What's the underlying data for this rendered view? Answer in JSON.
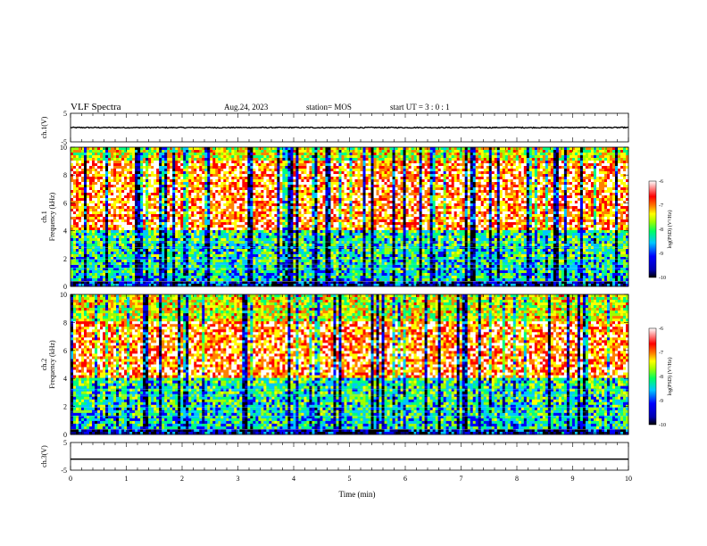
{
  "header": {
    "title": "VLF Spectra",
    "date": "Aug.24, 2023",
    "station": "station= MOS",
    "start_ut": "start  UT =   3 : 0  : 1"
  },
  "colors": {
    "spectrum_palette": [
      "#000000",
      "#00008b",
      "#0000ff",
      "#00c8ff",
      "#00ff80",
      "#a0ff00",
      "#ffff00",
      "#ff8000",
      "#ff0000",
      "#ffffff"
    ],
    "trace": "#000000"
  },
  "chart_data": [
    {
      "type": "line",
      "name": "ch1-waveform",
      "ylabel": "ch.1(V)",
      "ylim": [
        -5,
        5
      ],
      "yticks": [
        "5",
        "-5"
      ],
      "xlim": [
        0,
        10
      ],
      "baseline": 0,
      "grid": false
    },
    {
      "type": "heatmap",
      "name": "ch1-spectrogram",
      "ylabel": "ch.1 Frequency (kHz)",
      "ylim": [
        0,
        10
      ],
      "yticks": [
        "0",
        "2",
        "4",
        "6",
        "8",
        "10"
      ],
      "xlim": [
        0,
        10
      ],
      "colorbar": {
        "label": "log(PSD) (V²/Hz)",
        "range": [
          -10,
          -6
        ],
        "ticks": [
          "-6",
          "-7",
          "-8",
          "-9",
          "-10"
        ]
      },
      "description_values": {
        "dominant_band_kHz": [
          4,
          9
        ]
      }
    },
    {
      "type": "heatmap",
      "name": "ch2-spectrogram",
      "ylabel": "ch.2 Frequency (kHz)",
      "ylim": [
        0,
        10
      ],
      "yticks": [
        "0",
        "2",
        "4",
        "6",
        "8",
        "10"
      ],
      "xlim": [
        0,
        10
      ],
      "colorbar": {
        "label": "log(PSD) (V²/Hz)",
        "range": [
          -10,
          -6
        ],
        "ticks": [
          "-6",
          "-7",
          "-8",
          "-9",
          "-10"
        ]
      },
      "description_values": {
        "dominant_band_kHz": [
          4,
          8
        ]
      }
    },
    {
      "type": "line",
      "name": "ch3-waveform",
      "ylabel": "ch.3(V)",
      "ylim": [
        -5,
        5
      ],
      "yticks": [
        "5",
        "-5"
      ],
      "xlim": [
        0,
        10
      ],
      "baseline": -1,
      "grid": false
    }
  ],
  "xaxis": {
    "label": "Time  (min)",
    "ticks": [
      "0",
      "1",
      "2",
      "3",
      "4",
      "5",
      "6",
      "7",
      "8",
      "9",
      "10"
    ]
  }
}
